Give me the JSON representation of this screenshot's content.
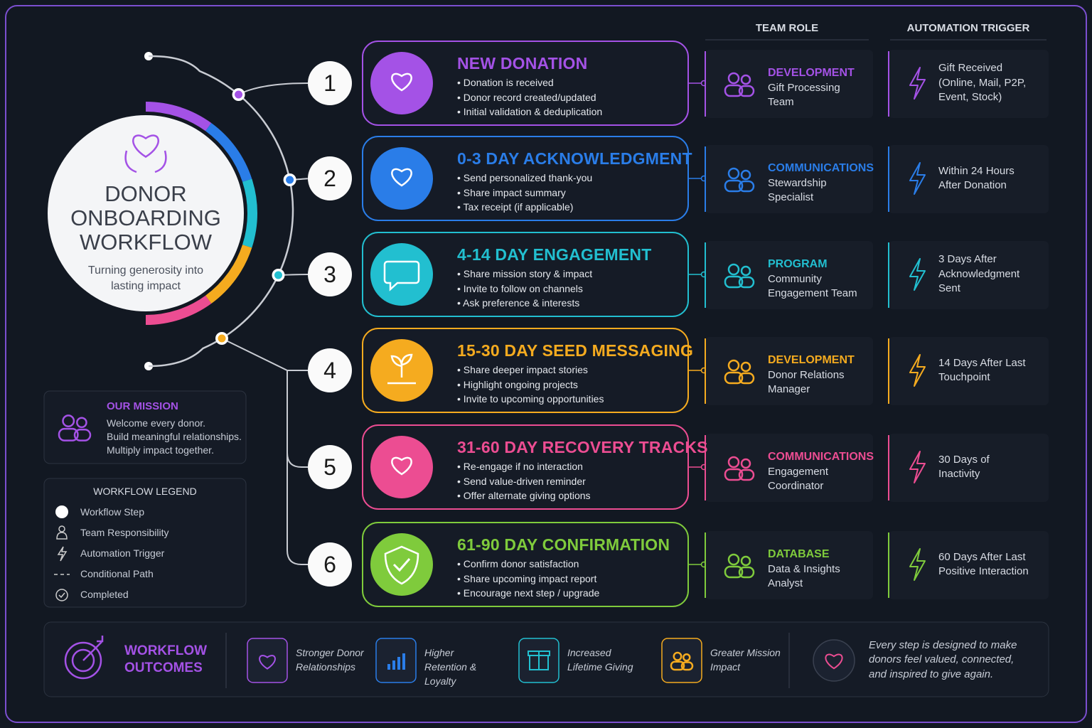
{
  "header": {
    "title": "DONOR ONBOARDING WORKFLOW",
    "subtitle": "Turning generosity into lasting impact"
  },
  "columns": {
    "role": "TEAM ROLE",
    "trigger": "AUTOMATION TRIGGER"
  },
  "steps": [
    {
      "number": 1,
      "title": "NEW DONATION",
      "color": "#a452e6",
      "bullets": [
        "Donation is received",
        "Donor record created/updated",
        "Initial validation & deduplication"
      ],
      "role": {
        "department": "DEVELOPMENT",
        "name": "Gift Processing Team"
      },
      "trigger": "Gift Received (Online, Mail, P2P, Event, Stock)"
    },
    {
      "number": 2,
      "title": "0-3 DAY ACKNOWLEDGMENT",
      "color": "#2a7de8",
      "bullets": [
        "Send personalized thank-you",
        "Share impact summary",
        "Tax receipt (if applicable)"
      ],
      "role": {
        "department": "COMMUNICATIONS",
        "name": "Stewardship Specialist"
      },
      "trigger": "Within 24 Hours After Donation"
    },
    {
      "number": 3,
      "title": "4-14 DAY ENGAGEMENT",
      "color": "#22bfd0",
      "bullets": [
        "Share mission story & impact",
        "Invite to follow on channels",
        "Ask preference & interests"
      ],
      "role": {
        "department": "PROGRAM",
        "name": "Community Engagement Team"
      },
      "trigger": "3 Days After Acknowledgment Sent"
    },
    {
      "number": 4,
      "title": "15-30 DAY SEED MESSAGING",
      "color": "#f5ab1f",
      "bullets": [
        "Share deeper impact stories",
        "Highlight ongoing projects",
        "Invite to upcoming opportunities"
      ],
      "role": {
        "department": "DEVELOPMENT",
        "name": "Donor Relations Manager"
      },
      "trigger": "14 Days After Last Touchpoint"
    },
    {
      "number": 5,
      "title": "31-60 DAY RECOVERY TRACKS",
      "color": "#ec4d92",
      "bullets": [
        "Re-engage if no interaction",
        "Send value-driven reminder",
        "Offer alternate giving options"
      ],
      "role": {
        "department": "COMMUNICATIONS",
        "name": "Engagement Coordinator"
      },
      "trigger": "30 Days of Inactivity"
    },
    {
      "number": 6,
      "title": "61-90 DAY CONFIRMATION",
      "color": "#7fcb3c",
      "bullets": [
        "Confirm donor satisfaction",
        "Share upcoming impact report",
        "Encourage next step / upgrade"
      ],
      "role": {
        "department": "DATABASE",
        "name": "Data & Insights Analyst"
      },
      "trigger": "60 Days After Last Positive Interaction"
    }
  ],
  "mission": {
    "title": "OUR MISSION",
    "lines": [
      "Welcome every donor.",
      "Build meaningful relationships.",
      "Multiply impact together."
    ]
  },
  "legend": {
    "title": "WORKFLOW LEGEND",
    "items": [
      "Workflow Step",
      "Team Responsibility",
      "Automation Trigger",
      "Conditional Path",
      "Completed"
    ]
  },
  "outcomes": {
    "title": "WORKFLOW OUTCOMES",
    "items": [
      {
        "label": "Stronger Donor Relationships",
        "color": "#a452e6"
      },
      {
        "label": "Higher Retention & Loyalty",
        "color": "#2a7de8"
      },
      {
        "label": "Increased Lifetime Giving",
        "color": "#22bfd0"
      },
      {
        "label": "Greater Mission Impact",
        "color": "#f5ab1f"
      }
    ],
    "quote": "Every step is designed to make donors feel valued, connected, and inspired to give again."
  }
}
